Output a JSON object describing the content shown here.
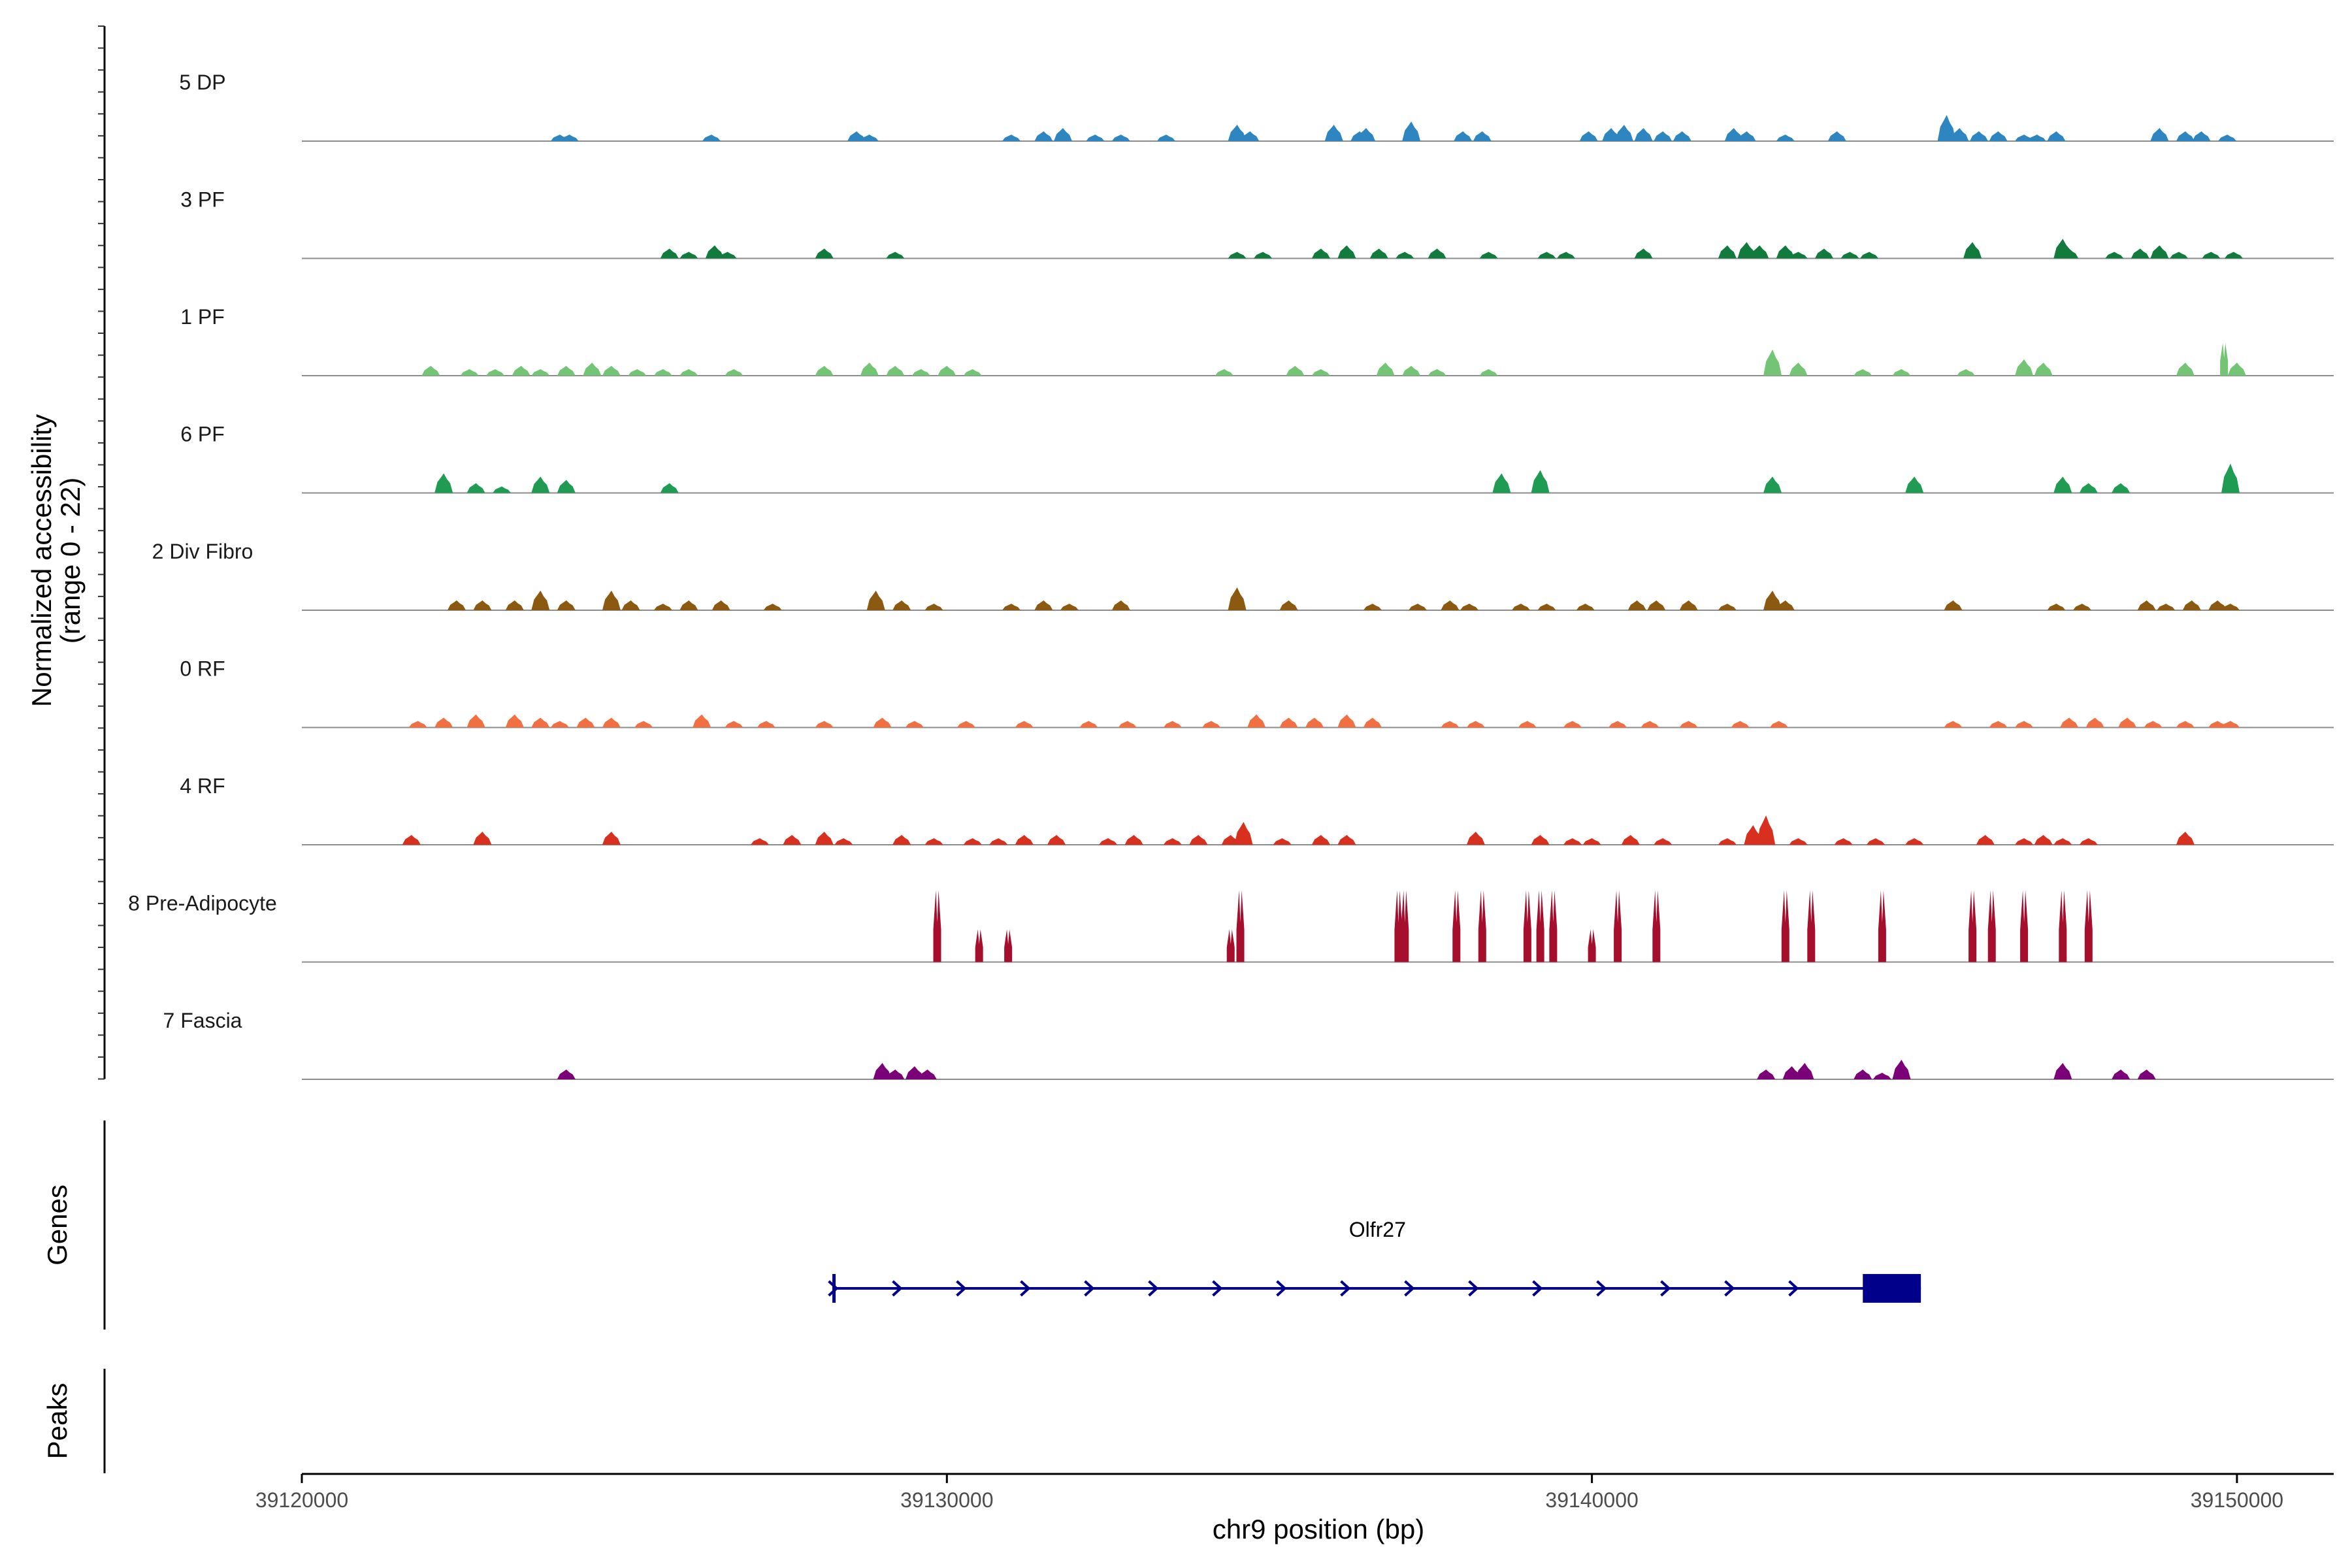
{
  "chart_data": {
    "type": "area",
    "title": "",
    "xlabel": "chr9 position (bp)",
    "ylabel": "Normalized accessibility",
    "ylabel_sub": "(range 0 - 22)",
    "xlim": [
      39120000,
      39151500
    ],
    "ylim": [
      0,
      22
    ],
    "x_ticks": [
      39120000,
      39130000,
      39140000,
      39150000
    ],
    "x_tick_labels": [
      "39120000",
      "39130000",
      "39140000",
      "39150000"
    ],
    "genes_label": "Genes",
    "peaks_label": "Peaks",
    "tracks": [
      {
        "name": "5 DP",
        "color": "#2e86c1",
        "peaks": [
          [
            39124000,
            2
          ],
          [
            39124150,
            2
          ],
          [
            39126350,
            2
          ],
          [
            39128600,
            3
          ],
          [
            39128800,
            2
          ],
          [
            39131000,
            2
          ],
          [
            39131500,
            3
          ],
          [
            39131800,
            4
          ],
          [
            39132300,
            2
          ],
          [
            39132700,
            2
          ],
          [
            39133400,
            2
          ],
          [
            39134500,
            5
          ],
          [
            39134700,
            3
          ],
          [
            39136000,
            5
          ],
          [
            39136400,
            3
          ],
          [
            39136500,
            4
          ],
          [
            39137200,
            6
          ],
          [
            39138000,
            3
          ],
          [
            39138300,
            3
          ],
          [
            39139950,
            3
          ],
          [
            39140300,
            4
          ],
          [
            39140500,
            5
          ],
          [
            39140800,
            4
          ],
          [
            39141100,
            3
          ],
          [
            39141400,
            3
          ],
          [
            39142200,
            4
          ],
          [
            39142400,
            3
          ],
          [
            39143000,
            2
          ],
          [
            39143800,
            3
          ],
          [
            39145500,
            8
          ],
          [
            39145700,
            4
          ],
          [
            39146000,
            3
          ],
          [
            39146300,
            3
          ],
          [
            39146700,
            2
          ],
          [
            39146900,
            2
          ],
          [
            39147200,
            3
          ],
          [
            39148800,
            4
          ],
          [
            39149200,
            3
          ],
          [
            39149450,
            3
          ],
          [
            39149850,
            2
          ]
        ]
      },
      {
        "name": "3 PF",
        "color": "#117a3d",
        "peaks": [
          [
            39125700,
            3
          ],
          [
            39126000,
            2
          ],
          [
            39126400,
            4
          ],
          [
            39126600,
            2
          ],
          [
            39128100,
            3
          ],
          [
            39129200,
            2
          ],
          [
            39134500,
            2
          ],
          [
            39134900,
            2
          ],
          [
            39135800,
            3
          ],
          [
            39136200,
            4
          ],
          [
            39136700,
            3
          ],
          [
            39137100,
            2
          ],
          [
            39137600,
            3
          ],
          [
            39138400,
            2
          ],
          [
            39139300,
            2
          ],
          [
            39139600,
            2
          ],
          [
            39140800,
            3
          ],
          [
            39142100,
            4
          ],
          [
            39142400,
            5
          ],
          [
            39142600,
            4
          ],
          [
            39143000,
            4
          ],
          [
            39143200,
            2
          ],
          [
            39143600,
            3
          ],
          [
            39144000,
            2
          ],
          [
            39144300,
            2
          ],
          [
            39145900,
            5
          ],
          [
            39147300,
            6
          ],
          [
            39147400,
            3
          ],
          [
            39148100,
            2
          ],
          [
            39148500,
            3
          ],
          [
            39148800,
            4
          ],
          [
            39149100,
            2
          ],
          [
            39149600,
            2
          ],
          [
            39149950,
            2
          ]
        ]
      },
      {
        "name": "1 PF",
        "color": "#74c476",
        "peaks": [
          [
            39122000,
            3
          ],
          [
            39122600,
            2
          ],
          [
            39123000,
            2
          ],
          [
            39123400,
            3
          ],
          [
            39123700,
            2
          ],
          [
            39124100,
            3
          ],
          [
            39124500,
            4
          ],
          [
            39124800,
            3
          ],
          [
            39125200,
            2
          ],
          [
            39125600,
            2
          ],
          [
            39126000,
            2
          ],
          [
            39126700,
            2
          ],
          [
            39128100,
            3
          ],
          [
            39128800,
            4
          ],
          [
            39129200,
            3
          ],
          [
            39129600,
            2
          ],
          [
            39130000,
            3
          ],
          [
            39130400,
            2
          ],
          [
            39134300,
            2
          ],
          [
            39135400,
            3
          ],
          [
            39135800,
            2
          ],
          [
            39136800,
            4
          ],
          [
            39137200,
            3
          ],
          [
            39137600,
            2
          ],
          [
            39138400,
            2
          ],
          [
            39142800,
            8
          ],
          [
            39143200,
            4
          ],
          [
            39144200,
            2
          ],
          [
            39144800,
            2
          ],
          [
            39145800,
            2
          ],
          [
            39146700,
            5
          ],
          [
            39147000,
            4
          ],
          [
            39149200,
            4
          ],
          [
            39149800,
            10
          ],
          [
            39150000,
            4
          ]
        ]
      },
      {
        "name": "6 PF",
        "color": "#1f9b54",
        "peaks": [
          [
            39122200,
            6
          ],
          [
            39122700,
            3
          ],
          [
            39123100,
            2
          ],
          [
            39123700,
            5
          ],
          [
            39124100,
            4
          ],
          [
            39125700,
            3
          ],
          [
            39138600,
            6
          ],
          [
            39139200,
            7
          ],
          [
            39142800,
            5
          ],
          [
            39145000,
            5
          ],
          [
            39147300,
            5
          ],
          [
            39147700,
            3
          ],
          [
            39148200,
            3
          ],
          [
            39149900,
            9
          ]
        ]
      },
      {
        "name": "2 Div Fibro",
        "color": "#8b5a10",
        "peaks": [
          [
            39122400,
            3
          ],
          [
            39122800,
            3
          ],
          [
            39123300,
            3
          ],
          [
            39123700,
            6
          ],
          [
            39124100,
            3
          ],
          [
            39124800,
            6
          ],
          [
            39125100,
            3
          ],
          [
            39125600,
            2
          ],
          [
            39126000,
            3
          ],
          [
            39126500,
            3
          ],
          [
            39127300,
            2
          ],
          [
            39128900,
            6
          ],
          [
            39129300,
            3
          ],
          [
            39129800,
            2
          ],
          [
            39131000,
            2
          ],
          [
            39131500,
            3
          ],
          [
            39131900,
            2
          ],
          [
            39132700,
            3
          ],
          [
            39134500,
            7
          ],
          [
            39135300,
            3
          ],
          [
            39136600,
            2
          ],
          [
            39137300,
            2
          ],
          [
            39137800,
            3
          ],
          [
            39138100,
            2
          ],
          [
            39138900,
            2
          ],
          [
            39139300,
            2
          ],
          [
            39139900,
            2
          ],
          [
            39140700,
            3
          ],
          [
            39141000,
            3
          ],
          [
            39141500,
            3
          ],
          [
            39142100,
            2
          ],
          [
            39142800,
            6
          ],
          [
            39143000,
            3
          ],
          [
            39145600,
            3
          ],
          [
            39147200,
            2
          ],
          [
            39147600,
            2
          ],
          [
            39148600,
            3
          ],
          [
            39148900,
            2
          ],
          [
            39149300,
            3
          ],
          [
            39149700,
            3
          ],
          [
            39149900,
            2
          ]
        ]
      },
      {
        "name": "0 RF",
        "color": "#f07043",
        "peaks": [
          [
            39121800,
            2
          ],
          [
            39122200,
            3
          ],
          [
            39122700,
            4
          ],
          [
            39123300,
            4
          ],
          [
            39123700,
            3
          ],
          [
            39124000,
            2
          ],
          [
            39124400,
            3
          ],
          [
            39124800,
            3
          ],
          [
            39125300,
            2
          ],
          [
            39126200,
            4
          ],
          [
            39126700,
            2
          ],
          [
            39127200,
            2
          ],
          [
            39128100,
            2
          ],
          [
            39129000,
            3
          ],
          [
            39129500,
            2
          ],
          [
            39130300,
            2
          ],
          [
            39131200,
            2
          ],
          [
            39132200,
            2
          ],
          [
            39132800,
            2
          ],
          [
            39133500,
            2
          ],
          [
            39134100,
            2
          ],
          [
            39134800,
            4
          ],
          [
            39135300,
            3
          ],
          [
            39135700,
            3
          ],
          [
            39136200,
            4
          ],
          [
            39136600,
            3
          ],
          [
            39137800,
            2
          ],
          [
            39138200,
            2
          ],
          [
            39139000,
            2
          ],
          [
            39139700,
            2
          ],
          [
            39140400,
            2
          ],
          [
            39140900,
            2
          ],
          [
            39141500,
            2
          ],
          [
            39142300,
            2
          ],
          [
            39142900,
            2
          ],
          [
            39145600,
            2
          ],
          [
            39146300,
            2
          ],
          [
            39146700,
            2
          ],
          [
            39147400,
            3
          ],
          [
            39147800,
            3
          ],
          [
            39148300,
            3
          ],
          [
            39148700,
            2
          ],
          [
            39149200,
            2
          ],
          [
            39149700,
            2
          ],
          [
            39149900,
            2
          ]
        ]
      },
      {
        "name": "4 RF",
        "color": "#d7301f",
        "peaks": [
          [
            39121700,
            3
          ],
          [
            39122800,
            4
          ],
          [
            39124800,
            4
          ],
          [
            39127100,
            2
          ],
          [
            39127600,
            3
          ],
          [
            39128100,
            4
          ],
          [
            39128400,
            2
          ],
          [
            39129300,
            3
          ],
          [
            39129800,
            2
          ],
          [
            39130400,
            2
          ],
          [
            39130800,
            2
          ],
          [
            39131200,
            3
          ],
          [
            39131700,
            3
          ],
          [
            39132500,
            2
          ],
          [
            39132900,
            3
          ],
          [
            39133500,
            2
          ],
          [
            39133900,
            3
          ],
          [
            39134400,
            3
          ],
          [
            39134600,
            7
          ],
          [
            39135200,
            2
          ],
          [
            39135800,
            3
          ],
          [
            39136200,
            3
          ],
          [
            39138200,
            4
          ],
          [
            39139200,
            3
          ],
          [
            39139700,
            2
          ],
          [
            39140000,
            2
          ],
          [
            39140600,
            3
          ],
          [
            39141100,
            2
          ],
          [
            39142100,
            2
          ],
          [
            39142500,
            6
          ],
          [
            39142700,
            9
          ],
          [
            39143200,
            2
          ],
          [
            39143900,
            2
          ],
          [
            39144400,
            2
          ],
          [
            39145000,
            2
          ],
          [
            39146100,
            3
          ],
          [
            39146700,
            2
          ],
          [
            39147000,
            3
          ],
          [
            39147300,
            2
          ],
          [
            39147700,
            2
          ],
          [
            39149200,
            4
          ]
        ]
      },
      {
        "name": "8 Pre-Adipocyte",
        "color": "#a50f2d",
        "peaks": [
          [
            39129850,
            22
          ],
          [
            39130500,
            10
          ],
          [
            39130950,
            10
          ],
          [
            39134400,
            10
          ],
          [
            39134550,
            22
          ],
          [
            39137000,
            22
          ],
          [
            39137100,
            22
          ],
          [
            39137900,
            22
          ],
          [
            39138300,
            22
          ],
          [
            39139000,
            22
          ],
          [
            39139200,
            22
          ],
          [
            39139400,
            22
          ],
          [
            39140000,
            10
          ],
          [
            39140400,
            22
          ],
          [
            39141000,
            22
          ],
          [
            39143000,
            22
          ],
          [
            39143400,
            22
          ],
          [
            39144500,
            22
          ],
          [
            39145900,
            22
          ],
          [
            39146200,
            22
          ],
          [
            39146700,
            22
          ],
          [
            39147300,
            22
          ],
          [
            39147700,
            22
          ]
        ]
      },
      {
        "name": "7 Fascia",
        "color": "#7a0177",
        "peaks": [
          [
            39124100,
            3
          ],
          [
            39129000,
            5
          ],
          [
            39129200,
            3
          ],
          [
            39129500,
            4
          ],
          [
            39129700,
            3
          ],
          [
            39142700,
            3
          ],
          [
            39143100,
            4
          ],
          [
            39143300,
            5
          ],
          [
            39144200,
            3
          ],
          [
            39144500,
            2
          ],
          [
            39144800,
            6
          ],
          [
            39147300,
            5
          ],
          [
            39148200,
            3
          ],
          [
            39148600,
            3
          ]
        ]
      }
    ],
    "genes": [
      {
        "name": "Olfr27",
        "start": 39128250,
        "end": 39145100,
        "exon_start": 39144200,
        "exon_end": 39145100,
        "strand": "+",
        "color": "#00008b"
      }
    ],
    "peaks_track": []
  }
}
